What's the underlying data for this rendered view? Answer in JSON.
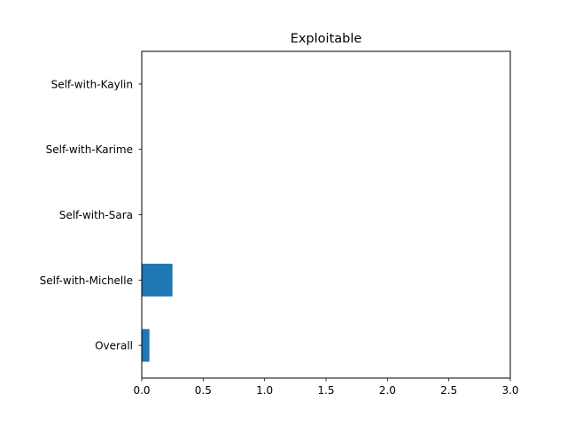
{
  "chart_data": {
    "type": "bar",
    "orientation": "horizontal",
    "title": "Exploitable",
    "xlabel": "",
    "ylabel": "",
    "categories": [
      "Self-with-Kaylin",
      "Self-with-Karime",
      "Self-with-Sara",
      "Self-with-Michelle",
      "Overall"
    ],
    "values": [
      0,
      0,
      0,
      0.25,
      0.0625
    ],
    "xlim": [
      0,
      3
    ],
    "xticks": [
      0.0,
      0.5,
      1.0,
      1.5,
      2.0,
      2.5,
      3.0
    ],
    "xtick_labels": [
      "0.0",
      "0.5",
      "1.0",
      "1.5",
      "2.0",
      "2.5",
      "3.0"
    ],
    "grid": false,
    "bar_color": "#1f77b4"
  }
}
